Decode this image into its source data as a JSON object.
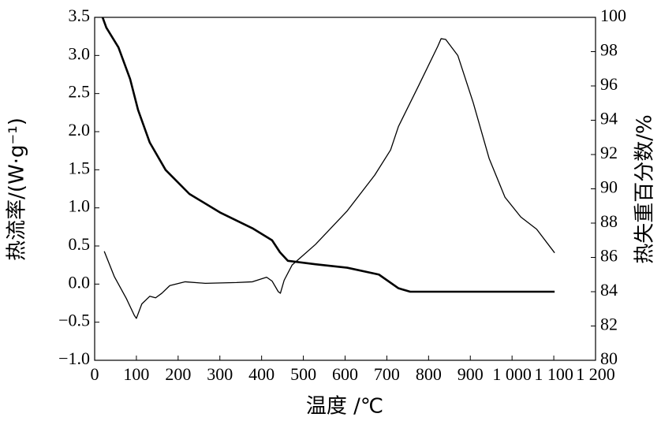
{
  "chart_data": {
    "type": "line",
    "xlabel": "温度 /℃",
    "ylabel": "热流率/(W·g⁻¹)",
    "y2label": "热失重百分数/%",
    "xlim": [
      0,
      1200
    ],
    "xticks": [
      0,
      100,
      200,
      300,
      400,
      500,
      600,
      700,
      800,
      900,
      {
        "value": 1000,
        "label": "1 000"
      },
      {
        "value": 1100,
        "label": "1 100"
      },
      {
        "value": 1200,
        "label": "1 200"
      }
    ],
    "ylim": [
      -1.0,
      3.5
    ],
    "yticks": [
      {
        "value": -1.0,
        "label": "−1.0"
      },
      {
        "value": -0.5,
        "label": "−0.5"
      },
      {
        "value": 0.0,
        "label": "0.0"
      },
      0.5,
      {
        "value": 1.0,
        "label": "1.0"
      },
      1.5,
      {
        "value": 2.0,
        "label": "2.0"
      },
      2.5,
      {
        "value": 3.0,
        "label": "3.0"
      },
      3.5
    ],
    "y2lim": [
      80,
      100
    ],
    "y2ticks": [
      80,
      82,
      84,
      86,
      88,
      90,
      92,
      94,
      96,
      98,
      100
    ],
    "series": [
      {
        "color": "#000000",
        "width": 1.3,
        "x": [
          23,
          47,
          76,
          95,
          100,
          113,
          132,
          146,
          161,
          180,
          217,
          265,
          340,
          378,
          412,
          425,
          440,
          445,
          454,
          473,
          529,
          605,
          671,
          709,
          728,
          775,
          822,
          830,
          841,
          870,
          907,
          945,
          983,
          1021,
          1059,
          1102
        ],
        "values": [
          0.43,
          0.1,
          -0.19,
          -0.41,
          -0.45,
          -0.26,
          -0.16,
          -0.18,
          -0.12,
          -0.02,
          0.03,
          0.01,
          0.02,
          0.03,
          0.09,
          0.04,
          -0.1,
          -0.12,
          0.05,
          0.25,
          0.52,
          0.96,
          1.43,
          1.76,
          2.07,
          2.59,
          3.12,
          3.22,
          3.21,
          3.0,
          2.38,
          1.65,
          1.14,
          0.88,
          0.72,
          0.41
        ]
      },
      {
        "color": "#000000",
        "width": 2.6,
        "axis": "y2",
        "x": [
          19,
          28,
          57,
          85,
          104,
          132,
          170,
          227,
          302,
          378,
          425,
          444,
          463,
          529,
          605,
          681,
          728,
          756,
          907,
          1102
        ],
        "values": [
          100,
          99.4,
          98.25,
          96.4,
          94.6,
          92.7,
          91.1,
          89.7,
          88.6,
          87.7,
          87.0,
          86.3,
          85.8,
          85.6,
          85.4,
          85.0,
          84.2,
          84.0,
          84.0,
          84.0
        ]
      }
    ]
  }
}
